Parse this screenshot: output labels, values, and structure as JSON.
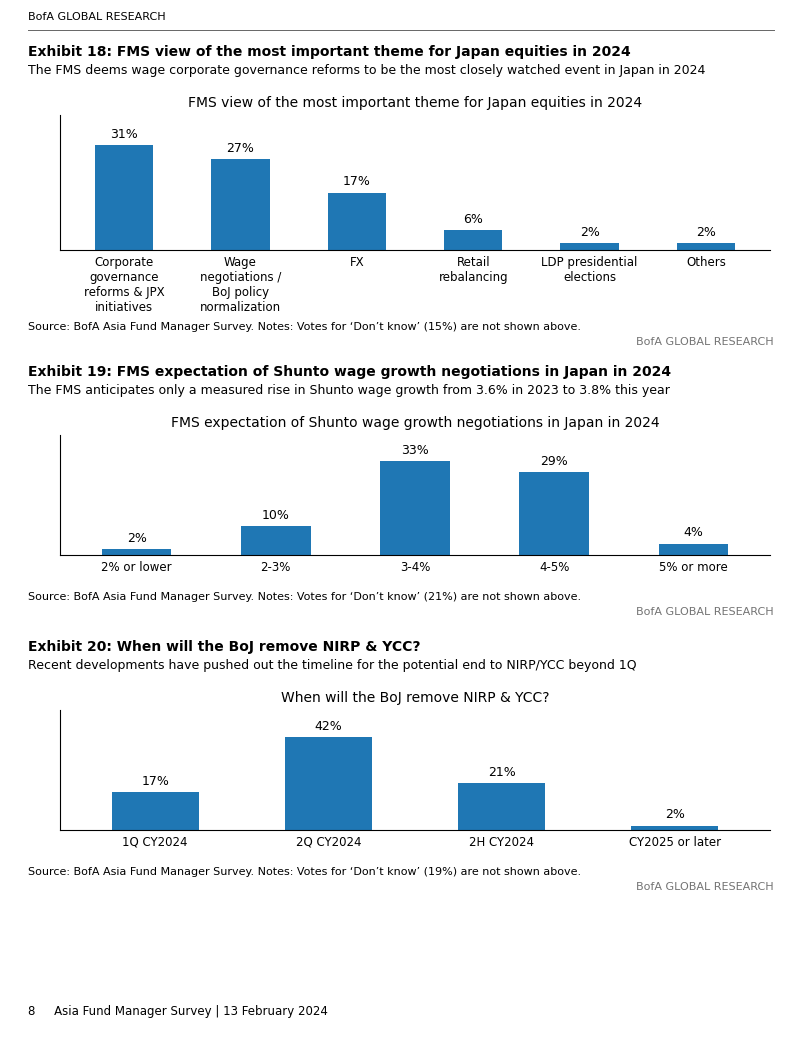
{
  "header": "BofA GLOBAL RESEARCH",
  "footer": "8     Asia Fund Manager Survey | 13 February 2024",
  "chart_data": [
    {
      "type": "bar",
      "heading": "Exhibit 18: FMS view of the most important theme for Japan equities in 2024",
      "subtitle": "The FMS deems wage corporate governance reforms to be the most closely watched event in Japan in 2024",
      "title": "FMS view of the most important theme for Japan equities in 2024",
      "categories": [
        "Corporate\ngovernance\nreforms & JPX\ninitiatives",
        "Wage\nnegotiations /\nBoJ policy\nnormalization",
        "FX",
        "Retail\nrebalancing",
        "LDP presidential\nelections",
        "Others"
      ],
      "values": [
        31,
        27,
        17,
        6,
        2,
        2
      ],
      "value_labels": [
        "31%",
        "27%",
        "17%",
        "6%",
        "2%",
        "2%"
      ],
      "data_labels": true,
      "ylim": [
        0,
        40
      ],
      "tick_labels": "x",
      "grid": false,
      "source": "Source: BofA Asia Fund Manager Survey. Notes: Votes for ‘Don’t know’ (15%) are not shown above.",
      "credit": "BofA GLOBAL RESEARCH"
    },
    {
      "type": "bar",
      "heading": "Exhibit 19: FMS expectation of Shunto wage growth negotiations in Japan in 2024",
      "subtitle": "The FMS anticipates only a measured rise in Shunto wage growth from 3.6% in 2023 to 3.8% this year",
      "title": "FMS expectation of Shunto wage growth negotiations in Japan in 2024",
      "categories": [
        "2% or lower",
        "2-3%",
        "3-4%",
        "4-5%",
        "5% or more"
      ],
      "values": [
        2,
        10,
        33,
        29,
        4
      ],
      "value_labels": [
        "2%",
        "10%",
        "33%",
        "29%",
        "4%"
      ],
      "data_labels": true,
      "ylim": [
        0,
        42
      ],
      "tick_labels": "x",
      "grid": false,
      "source": "Source: BofA Asia Fund Manager Survey. Notes: Votes for ‘Don’t know’ (21%) are not shown above.",
      "credit": "BofA GLOBAL RESEARCH"
    },
    {
      "type": "bar",
      "heading": "Exhibit 20: When will the BoJ remove NIRP & YCC?",
      "subtitle": "Recent developments have pushed out the timeline for the potential end to NIRP/YCC beyond 1Q",
      "title": "When will the BoJ remove NIRP & YCC?",
      "categories": [
        "1Q CY2024",
        "2Q CY2024",
        "2H CY2024",
        "CY2025 or later"
      ],
      "values": [
        17,
        42,
        21,
        2
      ],
      "value_labels": [
        "17%",
        "42%",
        "21%",
        "2%"
      ],
      "data_labels": true,
      "ylim": [
        0,
        54
      ],
      "tick_labels": "x",
      "grid": false,
      "source": "Source: BofA Asia Fund Manager Survey. Notes: Votes for ‘Don’t know’ (19%) are not shown above.",
      "credit": "BofA GLOBAL RESEARCH"
    }
  ]
}
